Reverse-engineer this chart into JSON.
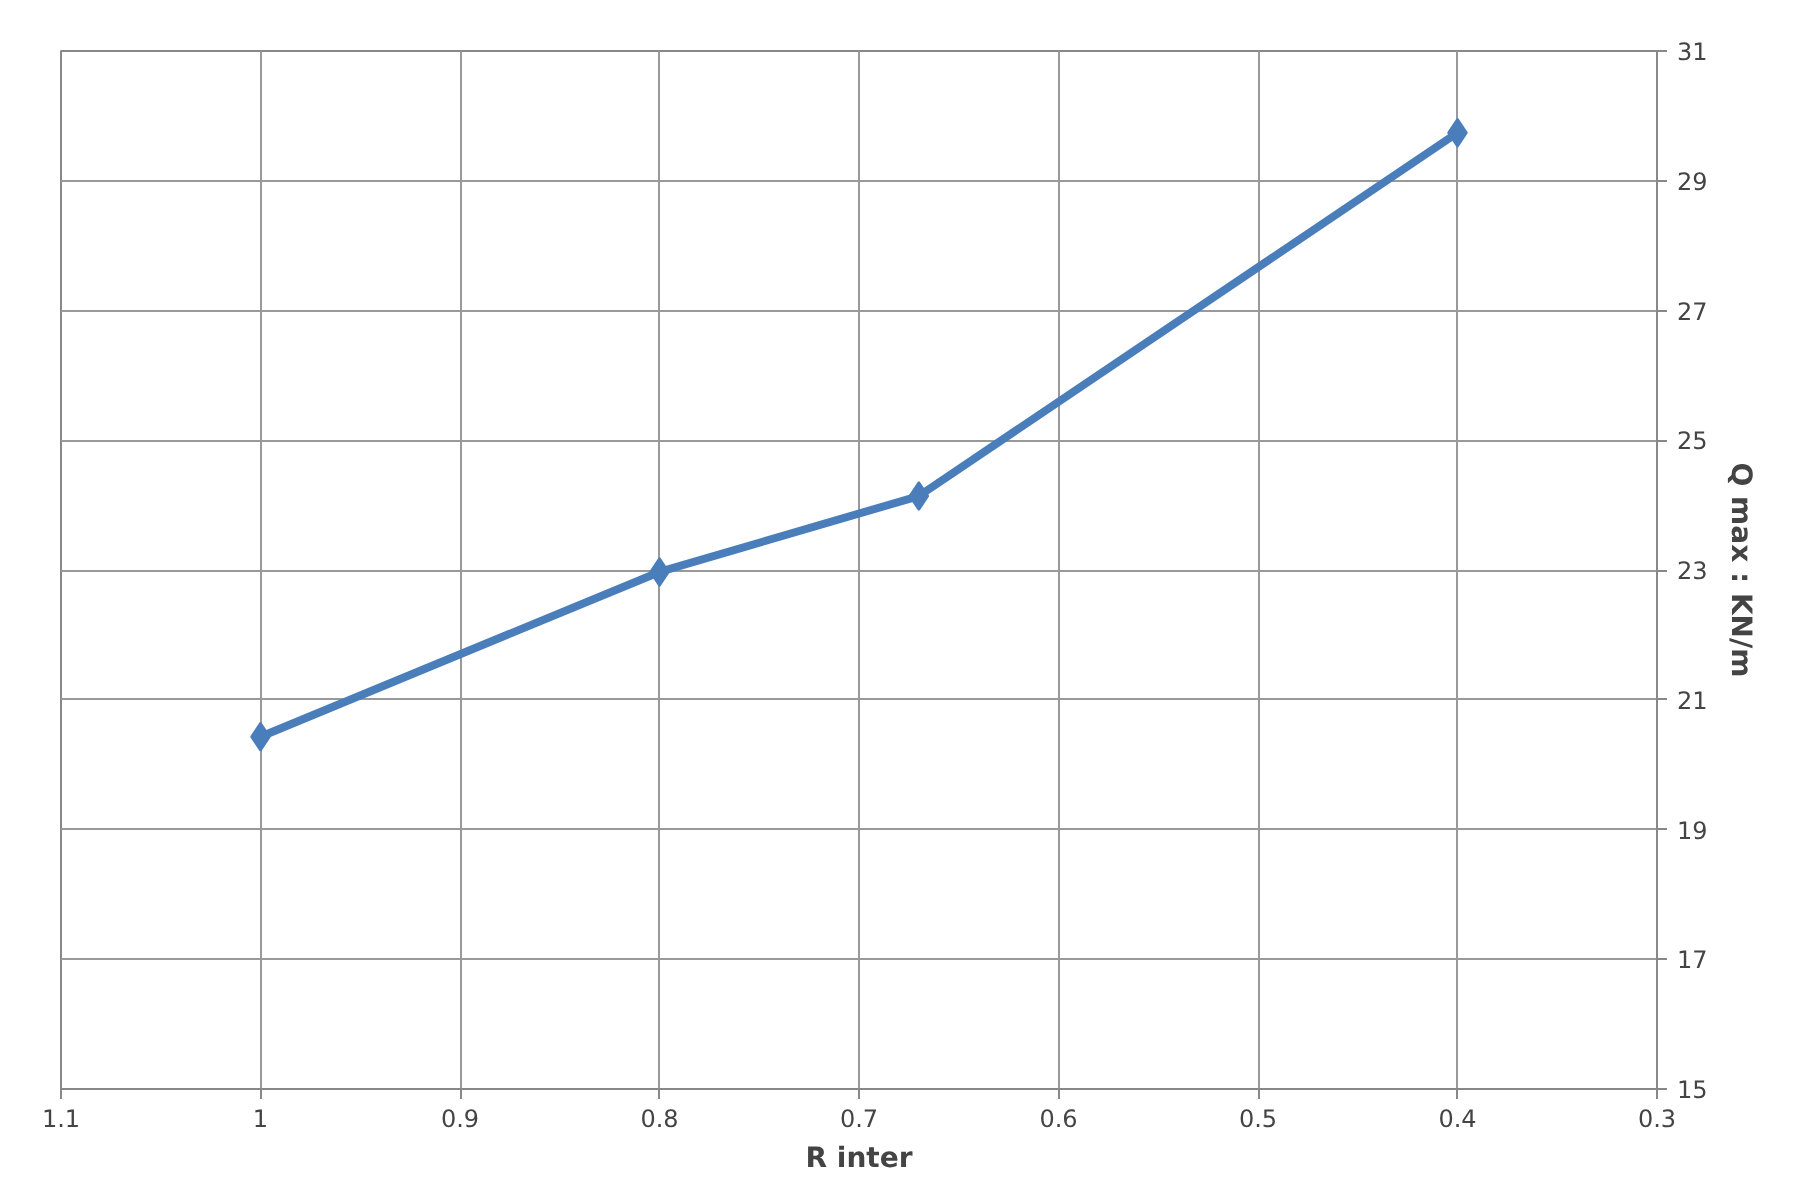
{
  "chart_data": {
    "type": "line",
    "xlabel": "R inter",
    "ylabel": "Q max : KN/m",
    "x": [
      1,
      0.8,
      0.67,
      0.4
    ],
    "series": [
      {
        "color": "#4a7ebb",
        "values": [
          20.43,
          22.97,
          24.14,
          29.74
        ]
      }
    ],
    "xlim": [
      1.1,
      0.3
    ],
    "xticks": [
      1.1,
      1,
      0.9,
      0.8,
      0.7,
      0.6,
      0.5,
      0.4,
      0.3
    ],
    "ylim": [
      15,
      31
    ],
    "yticks": [
      15,
      17,
      19,
      21,
      23,
      25,
      27,
      29,
      31
    ],
    "grid": true,
    "marker": "diamond",
    "line_style": "solid"
  }
}
